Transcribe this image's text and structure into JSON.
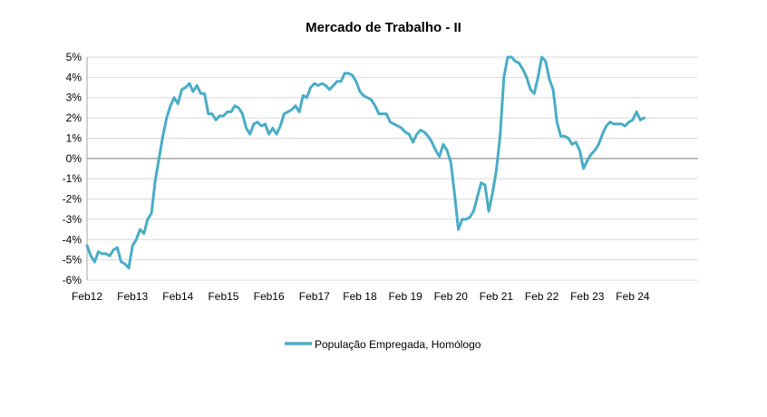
{
  "chart_data": {
    "type": "line",
    "title": "Mercado de Trabalho - II",
    "xlabel": "",
    "ylabel": "",
    "ylim": [
      -0.06,
      0.05
    ],
    "y_ticks": [
      -0.06,
      -0.05,
      -0.04,
      -0.03,
      -0.02,
      -0.01,
      0,
      0.01,
      0.02,
      0.03,
      0.04,
      0.05
    ],
    "y_tick_labels": [
      "-6%",
      "-5%",
      "-4%",
      "-3%",
      "-2%",
      "-1%",
      "0%",
      "1%",
      "2%",
      "3%",
      "4%",
      "5%"
    ],
    "x_tick_labels": [
      {
        "x": "2012-02",
        "label": "Feb12"
      },
      {
        "x": "2013-02",
        "label": "Feb13"
      },
      {
        "x": "2014-02",
        "label": "Feb14"
      },
      {
        "x": "2015-02",
        "label": "Feb15"
      },
      {
        "x": "2016-02",
        "label": "Feb16"
      },
      {
        "x": "2017-02",
        "label": "Feb17"
      },
      {
        "x": "2018-02",
        "label": "Feb 18"
      },
      {
        "x": "2019-02",
        "label": "Feb 19"
      },
      {
        "x": "2020-02",
        "label": "Feb 20"
      },
      {
        "x": "2021-02",
        "label": "Feb 21"
      },
      {
        "x": "2022-02",
        "label": "Feb 22"
      },
      {
        "x": "2023-02",
        "label": "Feb 23"
      },
      {
        "x": "2024-02",
        "label": "Feb 24"
      }
    ],
    "grid": "horizontal",
    "legend_position": "bottom",
    "series": [
      {
        "name": "População Empregada, Homólogo",
        "color": "#4aacc5",
        "points": [
          [
            "2012-02",
            -0.043
          ],
          [
            "2012-03",
            -0.048
          ],
          [
            "2012-04",
            -0.051
          ],
          [
            "2012-05",
            -0.046
          ],
          [
            "2012-06",
            -0.047
          ],
          [
            "2012-07",
            -0.047
          ],
          [
            "2012-08",
            -0.048
          ],
          [
            "2012-09",
            -0.045
          ],
          [
            "2012-10",
            -0.044
          ],
          [
            "2012-11",
            -0.051
          ],
          [
            "2012-12",
            -0.052
          ],
          [
            "2013-01",
            -0.054
          ],
          [
            "2013-02",
            -0.043
          ],
          [
            "2013-03",
            -0.04
          ],
          [
            "2013-04",
            -0.035
          ],
          [
            "2013-05",
            -0.037
          ],
          [
            "2013-06",
            -0.03
          ],
          [
            "2013-07",
            -0.027
          ],
          [
            "2013-08",
            -0.011
          ],
          [
            "2013-09",
            0.0
          ],
          [
            "2013-10",
            0.011
          ],
          [
            "2013-11",
            0.02
          ],
          [
            "2013-12",
            0.026
          ],
          [
            "2014-01",
            0.03
          ],
          [
            "2014-02",
            0.027
          ],
          [
            "2014-03",
            0.034
          ],
          [
            "2014-04",
            0.035
          ],
          [
            "2014-05",
            0.037
          ],
          [
            "2014-06",
            0.033
          ],
          [
            "2014-07",
            0.036
          ],
          [
            "2014-08",
            0.032
          ],
          [
            "2014-09",
            0.032
          ],
          [
            "2014-10",
            0.022
          ],
          [
            "2014-11",
            0.022
          ],
          [
            "2014-12",
            0.019
          ],
          [
            "2015-01",
            0.021
          ],
          [
            "2015-02",
            0.021
          ],
          [
            "2015-03",
            0.023
          ],
          [
            "2015-04",
            0.023
          ],
          [
            "2015-05",
            0.026
          ],
          [
            "2015-06",
            0.025
          ],
          [
            "2015-07",
            0.022
          ],
          [
            "2015-08",
            0.015
          ],
          [
            "2015-09",
            0.012
          ],
          [
            "2015-10",
            0.017
          ],
          [
            "2015-11",
            0.018
          ],
          [
            "2015-12",
            0.016
          ],
          [
            "2016-01",
            0.017
          ],
          [
            "2016-02",
            0.012
          ],
          [
            "2016-03",
            0.015
          ],
          [
            "2016-04",
            0.012
          ],
          [
            "2016-05",
            0.016
          ],
          [
            "2016-06",
            0.022
          ],
          [
            "2016-07",
            0.023
          ],
          [
            "2016-08",
            0.024
          ],
          [
            "2016-09",
            0.026
          ],
          [
            "2016-10",
            0.023
          ],
          [
            "2016-11",
            0.031
          ],
          [
            "2016-12",
            0.03
          ],
          [
            "2017-01",
            0.035
          ],
          [
            "2017-02",
            0.037
          ],
          [
            "2017-03",
            0.036
          ],
          [
            "2017-04",
            0.037
          ],
          [
            "2017-05",
            0.036
          ],
          [
            "2017-06",
            0.034
          ],
          [
            "2017-07",
            0.036
          ],
          [
            "2017-08",
            0.038
          ],
          [
            "2017-09",
            0.038
          ],
          [
            "2017-10",
            0.042
          ],
          [
            "2017-11",
            0.042
          ],
          [
            "2017-12",
            0.041
          ],
          [
            "2018-01",
            0.038
          ],
          [
            "2018-02",
            0.033
          ],
          [
            "2018-03",
            0.031
          ],
          [
            "2018-04",
            0.03
          ],
          [
            "2018-05",
            0.029
          ],
          [
            "2018-06",
            0.026
          ],
          [
            "2018-07",
            0.022
          ],
          [
            "2018-08",
            0.022
          ],
          [
            "2018-09",
            0.022
          ],
          [
            "2018-10",
            0.018
          ],
          [
            "2018-11",
            0.017
          ],
          [
            "2018-12",
            0.016
          ],
          [
            "2019-01",
            0.015
          ],
          [
            "2019-02",
            0.013
          ],
          [
            "2019-03",
            0.012
          ],
          [
            "2019-04",
            0.008
          ],
          [
            "2019-05",
            0.012
          ],
          [
            "2019-06",
            0.014
          ],
          [
            "2019-07",
            0.013
          ],
          [
            "2019-08",
            0.011
          ],
          [
            "2019-09",
            0.008
          ],
          [
            "2019-10",
            0.004
          ],
          [
            "2019-11",
            0.001
          ],
          [
            "2019-12",
            0.007
          ],
          [
            "2020-01",
            0.004
          ],
          [
            "2020-02",
            -0.002
          ],
          [
            "2020-03",
            -0.018
          ],
          [
            "2020-04",
            -0.035
          ],
          [
            "2020-05",
            -0.03
          ],
          [
            "2020-06",
            -0.03
          ],
          [
            "2020-07",
            -0.029
          ],
          [
            "2020-08",
            -0.026
          ],
          [
            "2020-09",
            -0.019
          ],
          [
            "2020-10",
            -0.012
          ],
          [
            "2020-11",
            -0.013
          ],
          [
            "2020-12",
            -0.026
          ],
          [
            "2021-01",
            -0.017
          ],
          [
            "2021-02",
            -0.006
          ],
          [
            "2021-03",
            0.011
          ],
          [
            "2021-04",
            0.04
          ],
          [
            "2021-05",
            0.05
          ],
          [
            "2021-06",
            0.05
          ],
          [
            "2021-07",
            0.048
          ],
          [
            "2021-08",
            0.047
          ],
          [
            "2021-09",
            0.044
          ],
          [
            "2021-10",
            0.04
          ],
          [
            "2021-11",
            0.034
          ],
          [
            "2021-12",
            0.032
          ],
          [
            "2022-01",
            0.04
          ],
          [
            "2022-02",
            0.05
          ],
          [
            "2022-03",
            0.048
          ],
          [
            "2022-04",
            0.039
          ],
          [
            "2022-05",
            0.034
          ],
          [
            "2022-06",
            0.018
          ],
          [
            "2022-07",
            0.011
          ],
          [
            "2022-08",
            0.011
          ],
          [
            "2022-09",
            0.01
          ],
          [
            "2022-10",
            0.007
          ],
          [
            "2022-11",
            0.008
          ],
          [
            "2022-12",
            0.004
          ],
          [
            "2023-01",
            -0.005
          ],
          [
            "2023-02",
            -0.001
          ],
          [
            "2023-03",
            0.002
          ],
          [
            "2023-04",
            0.004
          ],
          [
            "2023-05",
            0.007
          ],
          [
            "2023-06",
            0.012
          ],
          [
            "2023-07",
            0.016
          ],
          [
            "2023-08",
            0.018
          ],
          [
            "2023-09",
            0.017
          ],
          [
            "2023-10",
            0.017
          ],
          [
            "2023-11",
            0.017
          ],
          [
            "2023-12",
            0.016
          ],
          [
            "2024-01",
            0.018
          ],
          [
            "2024-02",
            0.019
          ],
          [
            "2024-03",
            0.023
          ],
          [
            "2024-04",
            0.019
          ],
          [
            "2024-05",
            0.02
          ]
        ]
      }
    ]
  }
}
